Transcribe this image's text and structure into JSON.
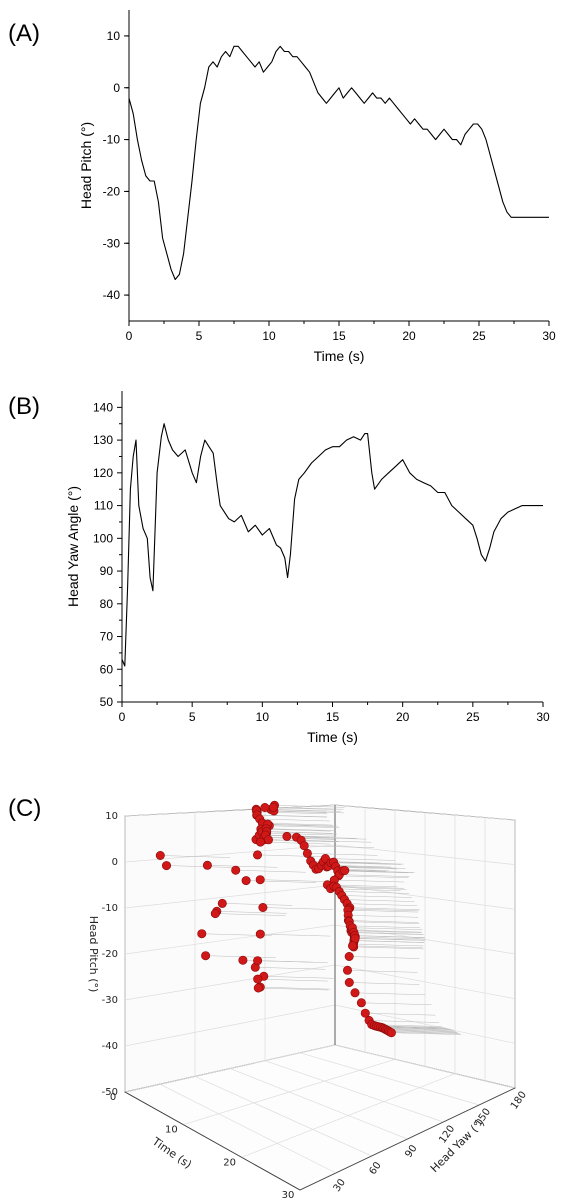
{
  "panels": [
    {
      "label": "(A)",
      "chart_data": {
        "type": "line",
        "xlabel": "Time (s)",
        "ylabel": "Head Pitch (°)",
        "xlim": [
          0,
          30
        ],
        "ylim": [
          -45,
          15
        ],
        "xticks": [
          0,
          5,
          10,
          15,
          20,
          25,
          30
        ],
        "yticks": [
          -40,
          -30,
          -20,
          -10,
          0,
          10
        ],
        "series": [
          {
            "color": "#000000",
            "x": [
              0,
              0.3,
              0.6,
              0.9,
              1.2,
              1.5,
              1.8,
              2.1,
              2.4,
              2.7,
              3.0,
              3.3,
              3.6,
              3.9,
              4.2,
              4.5,
              4.8,
              5.1,
              5.4,
              5.7,
              6.0,
              6.3,
              6.6,
              6.9,
              7.2,
              7.5,
              7.8,
              8.1,
              8.4,
              8.7,
              9.0,
              9.3,
              9.6,
              9.9,
              10.2,
              10.5,
              10.8,
              11.1,
              11.4,
              11.7,
              12.0,
              12.3,
              12.6,
              12.9,
              13.2,
              13.5,
              13.8,
              14.1,
              14.4,
              14.7,
              15.0,
              15.3,
              15.6,
              15.9,
              16.2,
              16.5,
              16.8,
              17.1,
              17.4,
              17.7,
              18.0,
              18.3,
              18.6,
              18.9,
              19.2,
              19.5,
              19.8,
              20.1,
              20.4,
              20.7,
              21.0,
              21.3,
              21.6,
              21.9,
              22.2,
              22.5,
              22.8,
              23.1,
              23.4,
              23.7,
              24.0,
              24.3,
              24.6,
              24.9,
              25.2,
              25.5,
              25.8,
              26.1,
              26.4,
              26.7,
              27.0,
              27.3,
              27.6,
              27.9,
              28.2,
              28.5,
              28.8,
              29.1,
              29.4,
              29.7,
              30.0
            ],
            "y": [
              -2,
              -5,
              -10,
              -14,
              -17,
              -18,
              -18,
              -22,
              -29,
              -32,
              -35,
              -37,
              -36,
              -32,
              -25,
              -18,
              -10,
              -3,
              0,
              4,
              5,
              4,
              6,
              7,
              6,
              8,
              8,
              7,
              6,
              5,
              4,
              5,
              3,
              4,
              5,
              7,
              8,
              7,
              7,
              6,
              6,
              5,
              4,
              3,
              1,
              -1,
              -2,
              -3,
              -2,
              -1,
              0,
              -2,
              -1,
              0,
              -1,
              -2,
              -3,
              -2,
              -1,
              -2,
              -2,
              -3,
              -2,
              -3,
              -4,
              -5,
              -6,
              -7,
              -6,
              -7,
              -8,
              -8,
              -9,
              -10,
              -9,
              -8,
              -9,
              -10,
              -10,
              -11,
              -9,
              -8,
              -7,
              -7,
              -8,
              -10,
              -13,
              -16,
              -19,
              -22,
              -24,
              -25,
              -25,
              -25,
              -25,
              -25,
              -25,
              -25,
              -25,
              -25,
              -25
            ]
          }
        ]
      }
    },
    {
      "label": "(B)",
      "chart_data": {
        "type": "line",
        "xlabel": "Time (s)",
        "ylabel": "Head Yaw Angle (°)",
        "xlim": [
          0,
          30
        ],
        "ylim": [
          50,
          145
        ],
        "xticks": [
          0,
          5,
          10,
          15,
          20,
          25,
          30
        ],
        "yticks": [
          50,
          60,
          70,
          80,
          90,
          100,
          110,
          120,
          130,
          140
        ],
        "series": [
          {
            "color": "#000000",
            "x": [
              0,
              0.2,
              0.4,
              0.6,
              0.8,
              1.0,
              1.2,
              1.5,
              1.8,
              2.0,
              2.2,
              2.5,
              2.8,
              3.0,
              3.3,
              3.6,
              4.0,
              4.5,
              5.0,
              5.3,
              5.6,
              5.9,
              6.2,
              6.5,
              6.8,
              7.0,
              7.3,
              7.6,
              8.0,
              8.5,
              9.0,
              9.5,
              10.0,
              10.5,
              11.0,
              11.3,
              11.6,
              11.8,
              12.0,
              12.3,
              12.6,
              13.0,
              13.5,
              14.0,
              14.5,
              15.0,
              15.5,
              16.0,
              16.5,
              17.0,
              17.3,
              17.5,
              17.8,
              18.0,
              18.5,
              19.0,
              19.5,
              20.0,
              20.5,
              21.0,
              21.5,
              22.0,
              22.5,
              23.0,
              23.5,
              24.0,
              24.5,
              25.0,
              25.3,
              25.6,
              25.9,
              26.2,
              26.5,
              27.0,
              27.5,
              28.0,
              28.5,
              29.0,
              29.5,
              30.0
            ],
            "y": [
              63,
              61,
              85,
              115,
              125,
              130,
              110,
              103,
              100,
              88,
              84,
              120,
              131,
              135,
              130,
              127,
              125,
              127,
              120,
              117,
              125,
              130,
              128,
              126,
              116,
              110,
              108,
              106,
              105,
              107,
              102,
              104,
              101,
              103,
              98,
              97,
              94,
              88,
              95,
              112,
              118,
              120,
              123,
              125,
              127,
              128,
              128,
              130,
              131,
              130,
              132,
              132,
              120,
              115,
              118,
              120,
              122,
              124,
              120,
              118,
              117,
              116,
              114,
              114,
              110,
              108,
              106,
              104,
              100,
              95,
              93,
              97,
              102,
              106,
              108,
              109,
              110,
              110,
              110,
              110
            ]
          }
        ]
      }
    },
    {
      "label": "(C)",
      "chart_data": {
        "type": "scatter3d",
        "xlabel": "Time (s)",
        "ylabel": "Head Yaw (°)",
        "zlabel": "Head Pitch (°)",
        "time_ticks": [
          0,
          10,
          20,
          30
        ],
        "time_tick_labels": [
          "0",
          "10",
          "20",
          "30"
        ],
        "yaw_ticks": [
          30,
          60,
          90,
          120,
          150,
          180
        ],
        "yaw_tick_labels": [
          "30",
          "60",
          "90",
          "120",
          "150",
          "180"
        ],
        "pitch_ticks": [
          -50,
          -40,
          -30,
          -20,
          -10,
          0,
          10
        ],
        "pitch_tick_labels": [
          "-50",
          "-40",
          "-30",
          "-20",
          "-10",
          "0",
          "10"
        ],
        "marker_color": "#d01818",
        "drop_line_color": "#bbbbbb",
        "time_lim": [
          0,
          30
        ],
        "yaw_lim": [
          0,
          180
        ],
        "pitch_lim": [
          -50,
          10
        ]
      }
    }
  ]
}
